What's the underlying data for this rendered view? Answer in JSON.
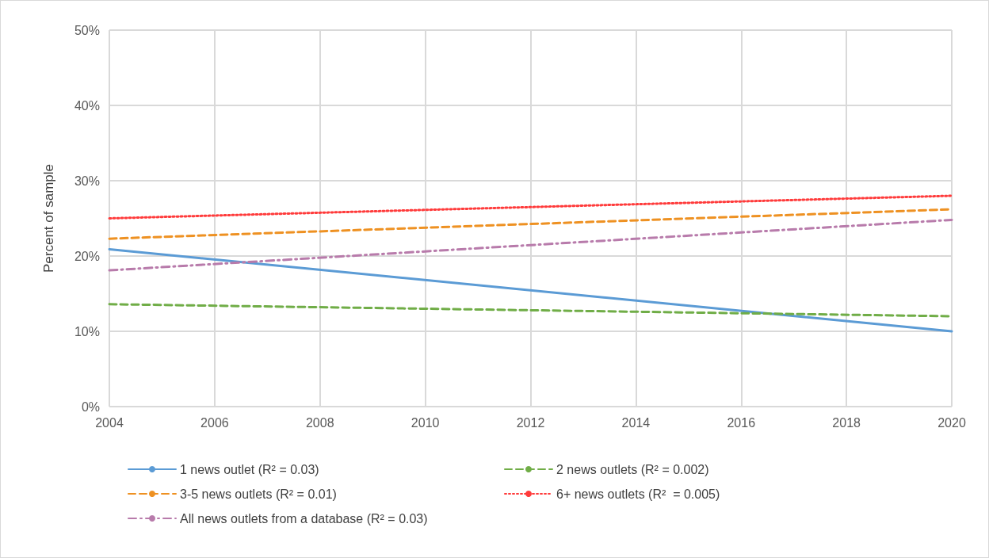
{
  "chart_data": {
    "type": "line",
    "ylabel": "Percent of sample",
    "x": [
      2004,
      2020
    ],
    "series": [
      {
        "name": "1 news outlet (R² = 0.03)",
        "color": "#5b9bd5",
        "line_style": "solid",
        "values": [
          20.9,
          10.0
        ]
      },
      {
        "name": "2 news outlets (R² = 0.002)",
        "color": "#70ad47",
        "line_style": "dashed",
        "values": [
          13.6,
          12.0
        ]
      },
      {
        "name": "3-5 news outlets (R² = 0.01)",
        "color": "#ee9122",
        "line_style": "dashed",
        "values": [
          22.3,
          26.2
        ]
      },
      {
        "name": "6+ news outlets (R²  = 0.005)",
        "color": "#ff3b3b",
        "line_style": "dotted",
        "values": [
          25.0,
          28.0
        ]
      },
      {
        "name": "All news outlets from a database (R² = 0.03)",
        "color": "#b87bab",
        "line_style": "dashdot",
        "values": [
          18.1,
          24.8
        ]
      }
    ],
    "xlim": [
      2004,
      2020
    ],
    "xticks": [
      2004,
      2006,
      2008,
      2010,
      2012,
      2014,
      2016,
      2018,
      2020
    ],
    "ylim": [
      0,
      50
    ],
    "yticks": [
      {
        "value": 0,
        "label": "0%"
      },
      {
        "value": 10,
        "label": "10%"
      },
      {
        "value": 20,
        "label": "20%"
      },
      {
        "value": 30,
        "label": "30%"
      },
      {
        "value": 40,
        "label": "40%"
      },
      {
        "value": 50,
        "label": "50%"
      }
    ],
    "grid": true,
    "legend": "bottom",
    "marker": "none"
  }
}
